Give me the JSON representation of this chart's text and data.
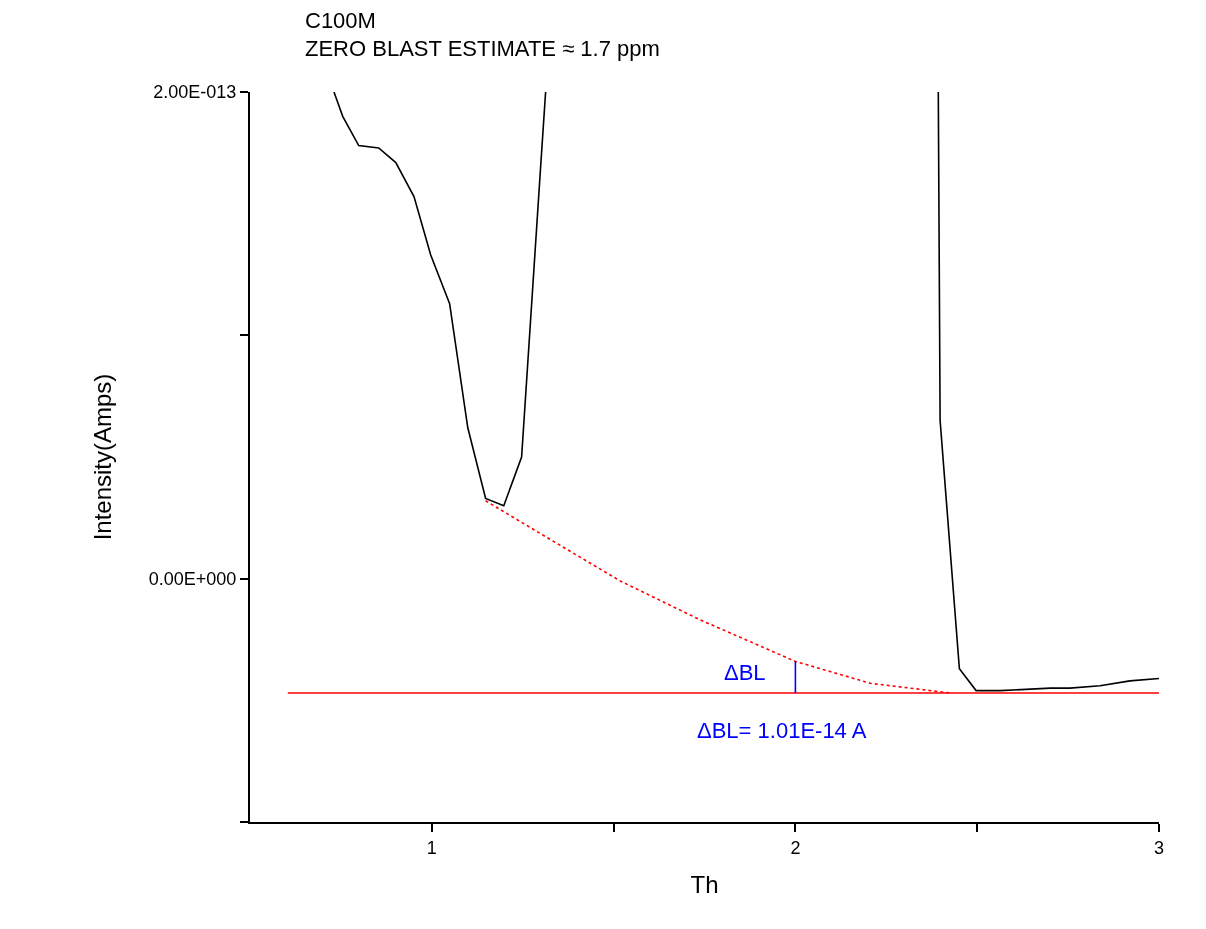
{
  "chart_data": {
    "type": "line",
    "title": "C100M",
    "subtitle": "ZERO BLAST ESTIMATE ≈ 1.7 ppm",
    "xlabel": "Th",
    "ylabel": "Intensity(Amps)",
    "xlim": [
      0.5,
      3
    ],
    "xticks": [
      1,
      {
        "value": 1.5,
        "label": null
      },
      2,
      {
        "value": 2.5,
        "label": null
      },
      3
    ],
    "ylim": [
      -1e-13,
      2e-13
    ],
    "yticks": [
      {
        "value": -1e-13,
        "label": null
      },
      {
        "value": 0,
        "label": "0.00E+000"
      },
      {
        "value": 1e-13,
        "label": null
      },
      {
        "value": 2e-13,
        "label": "2.00E-013"
      }
    ],
    "series": [
      {
        "color": "#000000",
        "x": [
          0.731,
          0.755,
          0.799,
          0.854,
          0.901,
          0.951,
          0.997,
          1.049,
          1.099,
          1.148,
          1.198,
          1.247,
          1.297,
          1.313
        ],
        "values": [
          2e-13,
          1.9e-13,
          1.78e-13,
          1.77e-13,
          1.71e-13,
          1.57e-13,
          1.33e-13,
          1.13e-13,
          6.2e-14,
          3.3e-14,
          3e-14,
          5e-14,
          1.64e-13,
          2e-13
        ]
      },
      {
        "color": "#000000",
        "x": [
          2.393,
          2.398,
          2.451,
          2.497,
          2.563,
          2.701,
          2.755,
          2.838,
          2.92,
          3.0
        ],
        "values": [
          2e-13,
          6.5e-14,
          -3.7e-14,
          -4.6e-14,
          -4.6e-14,
          -4.5e-14,
          -4.5e-14,
          -4.4e-14,
          -4.2e-14,
          -4.1e-14
        ]
      },
      {
        "color": "#ff0000",
        "line_style": "dotted",
        "x": [
          1.148,
          1.327,
          1.519,
          1.739,
          2.0,
          2.206,
          2.426
        ],
        "values": [
          3.2e-14,
          1.6e-14,
          -1e-15,
          -1.7e-14,
          -3.4e-14,
          -4.3e-14,
          -4.7e-14
        ]
      },
      {
        "color": "#ff0000",
        "x": [
          0.604,
          3.0
        ],
        "values": [
          -4.7e-14,
          -4.7e-14
        ]
      },
      {
        "color": "#0000ff",
        "x": [
          2.0,
          2.0
        ],
        "values": [
          -3.4e-14,
          -4.7e-14
        ]
      }
    ],
    "annotations": [
      "ΔBL",
      "ΔBL= 1.01E-14 A"
    ]
  }
}
